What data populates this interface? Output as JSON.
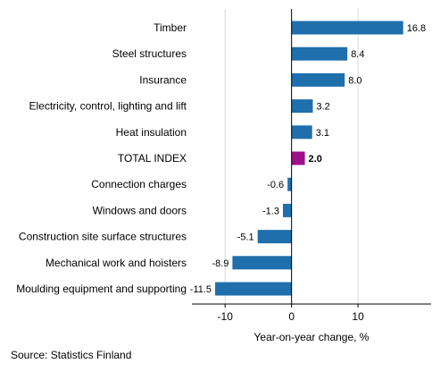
{
  "chart_data": {
    "type": "bar",
    "orientation": "horizontal",
    "categories": [
      "Timber",
      "Steel structures",
      "Insurance",
      "Electricity, control, lighting and lift",
      "Heat insulation",
      "TOTAL INDEX",
      "Connection charges",
      "Windows and doors",
      "Construction site surface structures",
      "Mechanical work and hoisters",
      "Moulding equipment and supporting"
    ],
    "values": [
      16.8,
      8.4,
      8.0,
      3.2,
      3.1,
      2.0,
      -0.6,
      -1.3,
      -5.1,
      -8.9,
      -11.5
    ],
    "value_labels": [
      "16.8",
      "8.4",
      "8.0",
      "3.2",
      "3.1",
      "2.0",
      "-0.6",
      "-1.3",
      "-5.1",
      "-8.9",
      "-11.5"
    ],
    "highlight_category": "TOTAL INDEX",
    "xlabel": "Year-on-year change, %",
    "xlim": [
      -15,
      21
    ],
    "xticks": [
      -10,
      0,
      10
    ],
    "xtick_labels": [
      "-10",
      "0",
      "10"
    ],
    "grid": "vertical",
    "colors": {
      "bar": "#1f6fad",
      "highlight": "#9e0f8a",
      "grid": "#d9d9d9",
      "axis": "#000000"
    }
  },
  "source": "Source: Statistics Finland"
}
